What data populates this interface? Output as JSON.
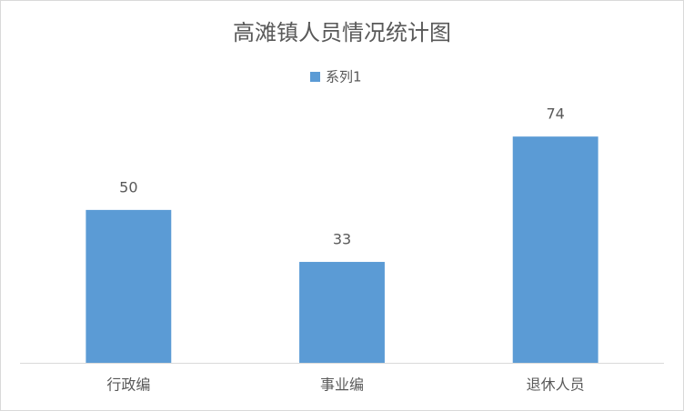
{
  "chart_data": {
    "type": "bar",
    "title": "高滩镇人员情况统计图",
    "categories": [
      "行政编",
      "事业编",
      "退休人员"
    ],
    "series": [
      {
        "name": "系列1",
        "color": "#5b9bd5",
        "values": [
          50,
          33,
          74
        ]
      }
    ],
    "ylim": [
      0,
      80
    ]
  }
}
